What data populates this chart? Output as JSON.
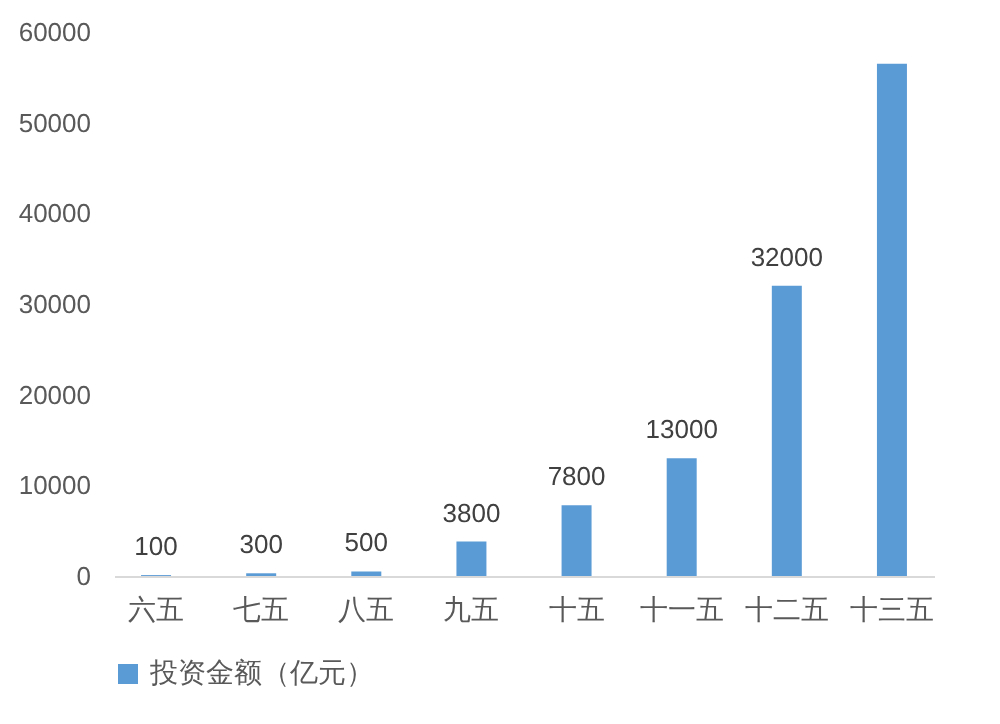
{
  "chart_data": {
    "type": "bar",
    "categories": [
      "六五",
      "七五",
      "八五",
      "九五",
      "十五",
      "十一五",
      "十二五",
      "十三五"
    ],
    "series": [
      {
        "name": "投资金额（亿元）",
        "color": "#5b9bd5",
        "values": [
          100,
          300,
          500,
          3800,
          7800,
          13000,
          32000,
          56500
        ]
      }
    ],
    "value_labels": [
      "100",
      "300",
      "500",
      "3800",
      "7800",
      "13000",
      "32000",
      null
    ],
    "ylim": [
      0,
      60000
    ],
    "yticks": [
      0,
      10000,
      20000,
      30000,
      40000,
      50000,
      60000
    ],
    "grid": false,
    "legend": "bottom"
  }
}
